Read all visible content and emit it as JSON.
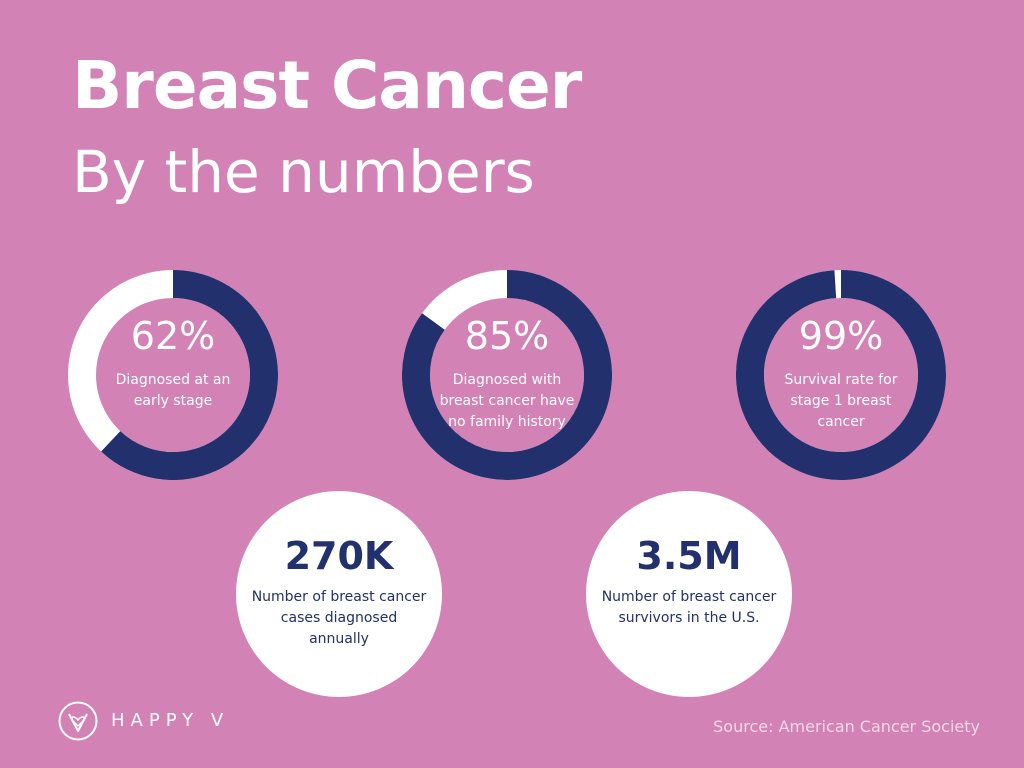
{
  "header": {
    "title": "Breast Cancer",
    "subtitle": "By the numbers"
  },
  "colors": {
    "background": "#d282b4",
    "fill": "#22306e",
    "track": "#ffffff",
    "text_light": "#ffffff",
    "text_dark": "#22306e"
  },
  "chart_data": [
    {
      "type": "pie",
      "value": 62,
      "label": "62%",
      "description": "Diagnosed at an early stage"
    },
    {
      "type": "pie",
      "value": 85,
      "label": "85%",
      "description": "Diagnosed with breast cancer have no family history"
    },
    {
      "type": "pie",
      "value": 99,
      "label": "99%",
      "description": "Survival rate for stage 1 breast cancer"
    }
  ],
  "stats": [
    {
      "value": "270K",
      "description": "Number of breast cancer cases diagnosed annually"
    },
    {
      "value": "3.5M",
      "description": "Number of breast cancer survivors in the U.S."
    }
  ],
  "footer": {
    "brand": "HAPPY V",
    "logo_icon": "heart-v-icon",
    "source": "Source: American Cancer Society"
  }
}
